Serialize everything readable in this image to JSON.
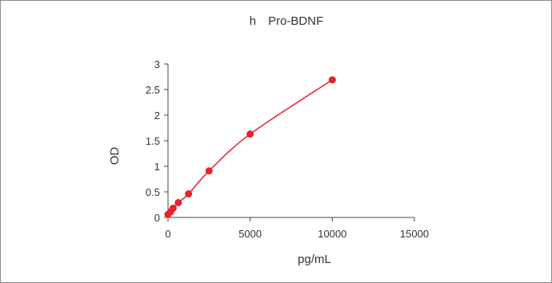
{
  "chart_data": {
    "type": "scatter",
    "title": "h　Pro-BDNF",
    "xlabel": "pg/mL",
    "ylabel": "OD",
    "xlim": [
      0,
      15000
    ],
    "ylim": [
      0,
      3
    ],
    "xticks": [
      0,
      5000,
      10000,
      15000
    ],
    "xtick_labels": [
      "0",
      "5000",
      "10000",
      "15000"
    ],
    "yticks": [
      0,
      0.5,
      1,
      1.5,
      2,
      2.5,
      3
    ],
    "ytick_labels": [
      "0",
      "0.5",
      "1",
      "1.5",
      "2",
      "2.5",
      "3"
    ],
    "grid": false,
    "series": [
      {
        "x": [
          0,
          156,
          312,
          625,
          1250,
          2500,
          5000,
          10000
        ],
        "y": [
          0.06,
          0.11,
          0.18,
          0.29,
          0.46,
          0.91,
          1.63,
          2.69
        ],
        "color": "#e8212b",
        "marker": "circle",
        "line": "smooth"
      }
    ]
  }
}
